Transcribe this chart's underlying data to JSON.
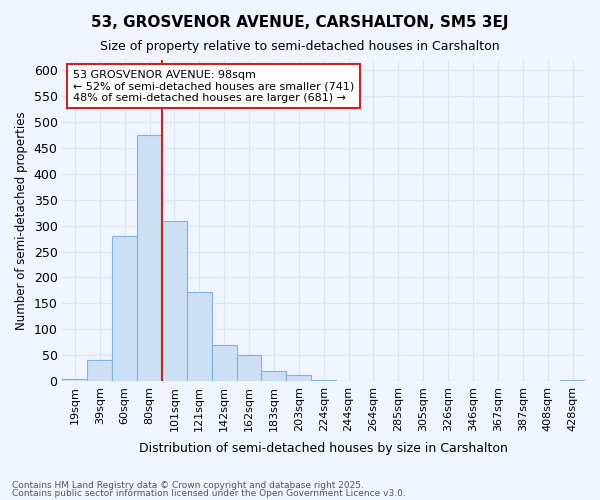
{
  "title": "53, GROSVENOR AVENUE, CARSHALTON, SM5 3EJ",
  "subtitle": "Size of property relative to semi-detached houses in Carshalton",
  "xlabel": "Distribution of semi-detached houses by size in Carshalton",
  "ylabel": "Number of semi-detached properties",
  "categories": [
    "19sqm",
    "39sqm",
    "60sqm",
    "80sqm",
    "101sqm",
    "121sqm",
    "142sqm",
    "162sqm",
    "183sqm",
    "203sqm",
    "224sqm",
    "244sqm",
    "264sqm",
    "285sqm",
    "305sqm",
    "326sqm",
    "346sqm",
    "367sqm",
    "387sqm",
    "408sqm",
    "428sqm"
  ],
  "values": [
    3,
    40,
    280,
    475,
    308,
    172,
    70,
    50,
    20,
    12,
    2,
    0,
    0,
    0,
    0,
    0,
    0,
    0,
    0,
    0,
    2
  ],
  "bar_color": "#ccdff5",
  "bar_edge_color": "#7fb3e0",
  "background_color": "#f0f4fc",
  "grid_color": "#d8e4f5",
  "annotation_box_facecolor": "#ffffff",
  "annotation_border_color": "#cc2222",
  "red_line_index": 3.5,
  "property_size": "98sqm",
  "pct_smaller": 52,
  "count_smaller": 741,
  "pct_larger": 48,
  "count_larger": 681,
  "footer_line1": "Contains HM Land Registry data © Crown copyright and database right 2025.",
  "footer_line2": "Contains public sector information licensed under the Open Government Licence v3.0.",
  "ylim": [
    0,
    620
  ],
  "yticks": [
    0,
    50,
    100,
    150,
    200,
    250,
    300,
    350,
    400,
    450,
    500,
    550,
    600
  ]
}
